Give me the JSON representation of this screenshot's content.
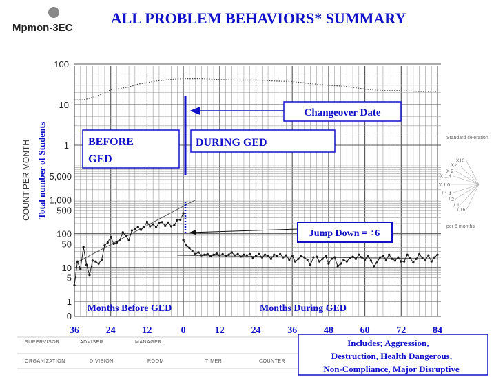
{
  "header": {
    "logo_label": "Mpmon-3EC",
    "title": "ALL PROBLEM BEHAVIORS* SUMMARY"
  },
  "colors": {
    "annotation_blue": "#1010c8",
    "data_line": "#1a1a1a",
    "grid": "#9a9a9a"
  },
  "annotations": {
    "changeover": "Changeover Date",
    "before": "BEFORE GED",
    "during": "DURING GED",
    "jump": "Jump Down = ÷6",
    "months_before": "Months Before GED",
    "months_during": "Months During GED",
    "includes": [
      "Includes;  Aggression,",
      "Destruction, Health Dangerous,",
      "Non-Compliance, Major Disruptive"
    ]
  },
  "footer": {
    "row1": [
      "SUPERVISOR",
      "ADVISER",
      "MANAGER"
    ],
    "row2": [
      "ORGANIZATION",
      "DIVISION",
      "ROOM",
      "TIMER",
      "COUNTER"
    ]
  },
  "celeration_fan": {
    "title": "Standard celeration",
    "labels": [
      "X16",
      "X 4",
      "X 2",
      "X 1.4",
      "X 1.0",
      "/ 1.4",
      "/ 2",
      "/ 4",
      "/ 16"
    ],
    "footnote": "per 6 months"
  },
  "chart_data": {
    "type": "line",
    "title": "ALL PROBLEM BEHAVIORS* SUMMARY",
    "xlabel": "",
    "ylabel": "COUNT PER MONTH",
    "ylabel_secondary": "Total number of Students",
    "x_tick_labels": [
      "36",
      "24",
      "12",
      "0",
      "12",
      "24",
      "36",
      "48",
      "60",
      "72",
      "84"
    ],
    "x_tick_values": [
      -36,
      -24,
      -12,
      0,
      12,
      24,
      36,
      48,
      60,
      72,
      84
    ],
    "xlim": [
      -36,
      84
    ],
    "y_tick_labels": [
      "1",
      "5",
      "10",
      "50",
      "100",
      "500",
      "1,000",
      "5,000"
    ],
    "y_tick_values": [
      1,
      5,
      10,
      50,
      100,
      500,
      1000,
      5000
    ],
    "upper_panel_tick_labels": [
      "100",
      "10",
      "1"
    ],
    "changeover_month": 0,
    "series": [
      {
        "x": [
          -36,
          -35,
          -34,
          -33,
          -32,
          -31,
          -30,
          -29,
          -28,
          -27,
          -26,
          -25,
          -24,
          -23,
          -22,
          -21,
          -20,
          -19,
          -18,
          -17,
          -16,
          -15,
          -14,
          -13,
          -12,
          -11,
          -10,
          -9,
          -8,
          -7,
          -6,
          -5,
          -4,
          -3,
          -2,
          -1,
          0
        ],
        "values": [
          3,
          15,
          9,
          40,
          12,
          6,
          16,
          15,
          13,
          17,
          45,
          55,
          80,
          50,
          55,
          65,
          110,
          85,
          65,
          125,
          135,
          160,
          130,
          155,
          225,
          165,
          190,
          155,
          210,
          220,
          170,
          215,
          165,
          180,
          250,
          260,
          400
        ]
      },
      {
        "x": [
          0,
          1,
          2,
          3,
          4,
          5,
          6,
          7,
          8,
          9,
          10,
          11,
          12,
          13,
          14,
          15,
          16,
          17,
          18,
          19,
          20,
          21,
          22,
          23,
          24,
          25,
          26,
          27,
          28,
          29,
          30,
          31,
          32,
          33,
          34,
          35,
          36,
          37,
          38,
          39,
          40,
          41,
          42,
          43,
          44,
          45,
          46,
          47,
          48,
          49,
          50,
          51,
          52,
          53,
          54,
          55,
          56,
          57,
          58,
          59,
          60,
          61,
          62,
          63,
          64,
          65,
          66,
          67,
          68,
          69,
          70,
          71,
          72,
          73,
          74,
          75,
          76,
          77,
          78,
          79,
          80,
          81,
          82,
          83,
          84
        ],
        "values": [
          65,
          45,
          38,
          30,
          25,
          28,
          23,
          24,
          25,
          22,
          24,
          26,
          23,
          25,
          22,
          24,
          28,
          23,
          25,
          21,
          24,
          23,
          25,
          19,
          22,
          25,
          20,
          24,
          22,
          18,
          24,
          22,
          25,
          20,
          23,
          17,
          22,
          15,
          18,
          22,
          20,
          17,
          12,
          20,
          21,
          15,
          18,
          22,
          13,
          18,
          20,
          11,
          13,
          17,
          15,
          19,
          21,
          18,
          24,
          20,
          17,
          22,
          16,
          11,
          14,
          20,
          22,
          17,
          24,
          18,
          16,
          20,
          15,
          15,
          24,
          19,
          14,
          18,
          25,
          19,
          17,
          23,
          15,
          20,
          24
        ]
      }
    ],
    "trend_lines": [
      {
        "x": [
          -36,
          4
        ],
        "values": [
          13,
          1000
        ]
      },
      {
        "x": [
          -2,
          84
        ],
        "values": [
          23,
          18
        ]
      }
    ],
    "students_series": {
      "x": [
        -36,
        -33,
        -30,
        -27,
        -24,
        -21,
        -18,
        -15,
        -12,
        -9,
        -6,
        -3,
        0,
        6,
        12,
        18,
        24,
        30,
        36,
        42,
        48,
        54,
        60,
        66,
        72,
        78,
        84
      ],
      "values": [
        13,
        13,
        15,
        18,
        23,
        25,
        27,
        32,
        35,
        38,
        40,
        42,
        43,
        43,
        41,
        40,
        40,
        38,
        37,
        33,
        30,
        28,
        24,
        22,
        22,
        21,
        21
      ]
    }
  }
}
